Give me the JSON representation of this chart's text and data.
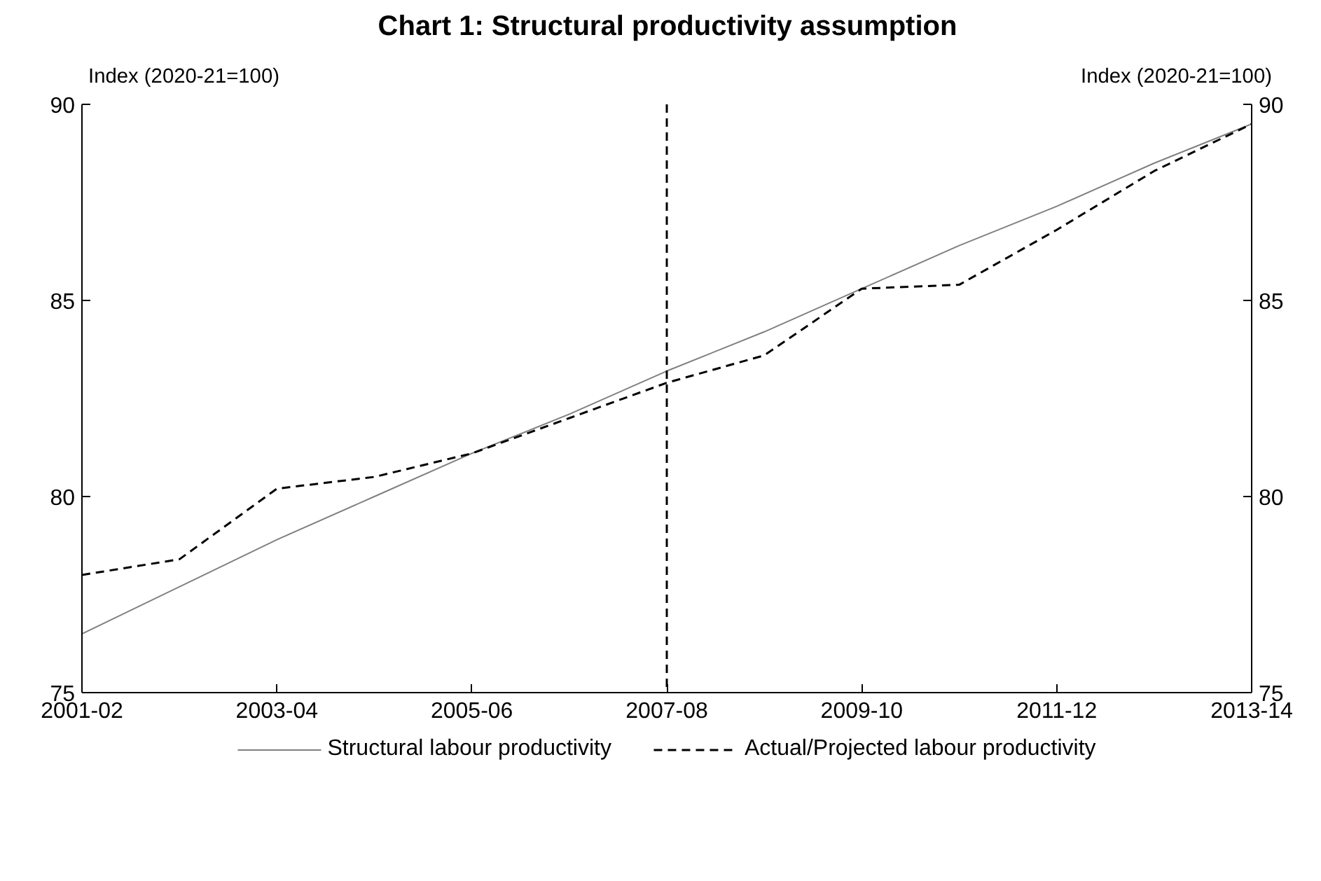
{
  "chart_data": {
    "type": "line",
    "title": "Chart 1: Structural productivity assumption",
    "ylabel": "Index (2020-21=100)",
    "y2label": "Index (2020-21=100)",
    "categories": [
      "2001-02",
      null,
      "2003-04",
      null,
      "2005-06",
      null,
      "2007-08",
      null,
      "2009-10",
      null,
      "2011-12",
      null,
      "2013-14"
    ],
    "series": [
      {
        "name": "Structural labour productivity",
        "color": "#808080",
        "line_style": "solid",
        "values": [
          76.5,
          77.7,
          78.9,
          80.0,
          81.1,
          82.1,
          83.2,
          84.2,
          85.3,
          86.4,
          87.4,
          88.5,
          89.5
        ]
      },
      {
        "name": "Actual/Projected labour productivity",
        "color": "#000000",
        "line_style": "dashed",
        "values": [
          78.0,
          78.4,
          80.2,
          80.5,
          81.1,
          82.0,
          82.9,
          83.6,
          85.3,
          85.4,
          86.8,
          88.3,
          89.5
        ]
      }
    ],
    "ylim": [
      75,
      90
    ],
    "yticks": [
      75,
      80,
      85,
      90
    ],
    "y2lim": [
      75,
      90
    ],
    "y2ticks": [
      75,
      80,
      85,
      90
    ],
    "ref_lines": [
      {
        "axis": "x",
        "value": "2007-08",
        "color": "#000000",
        "line_style": "dashed"
      }
    ],
    "grid": false,
    "legend": "bottom",
    "marker": "none"
  }
}
